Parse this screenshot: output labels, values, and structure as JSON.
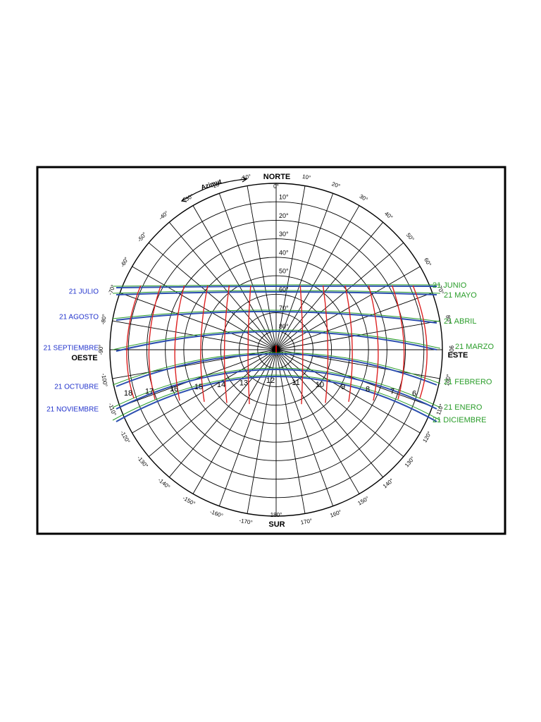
{
  "compass": {
    "north": "NORTE",
    "south": "SUR",
    "east": "ESTE",
    "west": "OESTE"
  },
  "azimuth_title": "Azimut",
  "azimuth_right": [
    "0°",
    "10°",
    "20°",
    "30°",
    "40°",
    "50°",
    "60°",
    "70°",
    "80°",
    "90°",
    "100°",
    "110°",
    "120°",
    "130°",
    "140°",
    "150°",
    "160°",
    "170°",
    "180°"
  ],
  "azimuth_left": [
    "-10°",
    "-20°",
    "-30°",
    "-40°",
    "-50°",
    "-60°",
    "-70°",
    "-80°",
    "-90°",
    "-100°",
    "-110°",
    "-120°",
    "-130°",
    "-140°",
    "-150°",
    "-160°",
    "-170°"
  ],
  "altitude_labels": [
    "10°",
    "20°",
    "30°",
    "40°",
    "50°",
    "60°",
    "70°",
    "80°"
  ],
  "dates_left": [
    "21 JULIO",
    "21 AGOSTO",
    "21 SEPTIEMBRE",
    "21 OCTUBRE",
    "21 NOVIEMBRE"
  ],
  "dates_right": [
    "21 JUNIO",
    "21 MAYO",
    "21 ABRIL",
    "21 MARZO",
    "21 FEBRERO",
    "21 ENERO",
    "21 DICIEMBRE"
  ],
  "hours": [
    "6",
    "7",
    "8",
    "9",
    "10",
    "11",
    "12",
    "13",
    "14",
    "15",
    "16",
    "17",
    "18"
  ]
}
